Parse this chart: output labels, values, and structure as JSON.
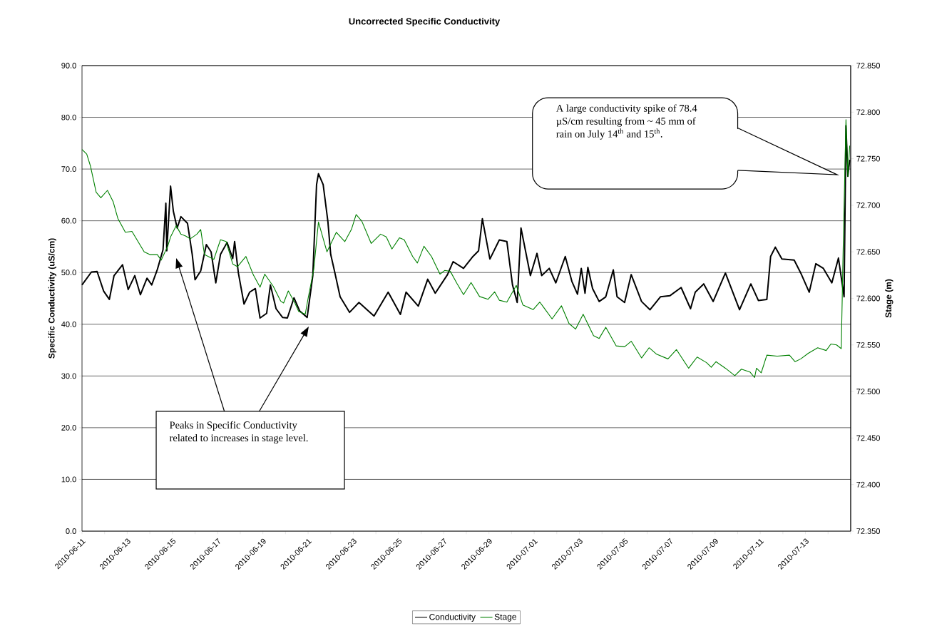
{
  "chart_data": {
    "type": "line",
    "title": "Uncorrected Specific Conductivity",
    "ylabel": "Specific Conductivity (uS/cm)",
    "y2label": "Stage (m)",
    "xlim": [
      "2010-06-11",
      "2010-07-15"
    ],
    "xticks": [
      "2010-06-11",
      {
        "value": "2010-06-12",
        "label": null
      },
      "2010-06-13",
      {
        "value": "2010-06-14",
        "label": null
      },
      "2010-06-15",
      {
        "value": "2010-06-16",
        "label": null
      },
      "2010-06-17",
      {
        "value": "2010-06-18",
        "label": null
      },
      "2010-06-19",
      {
        "value": "2010-06-20",
        "label": null
      },
      "2010-06-21",
      {
        "value": "2010-06-22",
        "label": null
      },
      "2010-06-23",
      {
        "value": "2010-06-24",
        "label": null
      },
      "2010-06-25",
      {
        "value": "2010-06-26",
        "label": null
      },
      "2010-06-27",
      {
        "value": "2010-06-28",
        "label": null
      },
      "2010-06-29",
      {
        "value": "2010-06-30",
        "label": null
      },
      "2010-07-01",
      {
        "value": "2010-07-02",
        "label": null
      },
      "2010-07-03",
      {
        "value": "2010-07-04",
        "label": null
      },
      "2010-07-05",
      {
        "value": "2010-07-06",
        "label": null
      },
      "2010-07-07",
      {
        "value": "2010-07-08",
        "label": null
      },
      "2010-07-09",
      {
        "value": "2010-07-10",
        "label": null
      },
      "2010-07-11",
      {
        "value": "2010-07-12",
        "label": null
      },
      "2010-07-13",
      {
        "value": "2010-07-14",
        "label": null
      },
      {
        "value": "2010-07-15",
        "label": null
      }
    ],
    "ylim": [
      0,
      90
    ],
    "yticks": [
      {
        "value": 0,
        "label": "0.0"
      },
      {
        "value": 10,
        "label": "10.0"
      },
      {
        "value": 20,
        "label": "20.0"
      },
      {
        "value": 30,
        "label": "30.0"
      },
      {
        "value": 40,
        "label": "40.0"
      },
      {
        "value": 50,
        "label": "50.0"
      },
      {
        "value": 60,
        "label": "60.0"
      },
      {
        "value": 70,
        "label": "70.0"
      },
      {
        "value": 80,
        "label": "80.0"
      },
      {
        "value": 90,
        "label": "90.0"
      }
    ],
    "y2lim": [
      72.35,
      72.85
    ],
    "y2ticks": [
      {
        "value": 72.35,
        "label": "72.350"
      },
      {
        "value": 72.4,
        "label": "72.400"
      },
      {
        "value": 72.45,
        "label": "72.450"
      },
      {
        "value": 72.5,
        "label": "72.500"
      },
      {
        "value": 72.55,
        "label": "72.550"
      },
      {
        "value": 72.6,
        "label": "72.600"
      },
      {
        "value": 72.65,
        "label": "72.650"
      },
      {
        "value": 72.7,
        "label": "72.700"
      },
      {
        "value": 72.75,
        "label": "72.750"
      },
      {
        "value": 72.8,
        "label": "72.800"
      },
      {
        "value": 72.85,
        "label": "72.850"
      }
    ],
    "grid": "y",
    "legend": "bottom",
    "series": [
      {
        "name": "Conductivity",
        "color": "#000000",
        "x": [
          "2010-06-11T00:00",
          "2010-06-11T10:00",
          "2010-06-11T16:00",
          "2010-06-11T23:00",
          "2010-06-12T05:00",
          "2010-06-12T10:00",
          "2010-06-12T19:00",
          "2010-06-13T01:00",
          "2010-06-13T08:00",
          "2010-06-13T14:00",
          "2010-06-13T21:00",
          "2010-06-14T02:00",
          "2010-06-14T08:00",
          "2010-06-14T14:00",
          "2010-06-14T17:00",
          "2010-06-14T18:00",
          "2010-06-14T22:00",
          "2010-06-15T01:00",
          "2010-06-15T05:00",
          "2010-06-15T09:00",
          "2010-06-15T16:00",
          "2010-06-15T21:00",
          "2010-06-16T00:00",
          "2010-06-16T06:00",
          "2010-06-16T12:00",
          "2010-06-16T17:00",
          "2010-06-16T22:00",
          "2010-06-17T03:00",
          "2010-06-17T10:00",
          "2010-06-17T16:00",
          "2010-06-17T18:00",
          "2010-06-17T22:00",
          "2010-06-18T04:00",
          "2010-06-18T10:00",
          "2010-06-18T16:00",
          "2010-06-18T21:00",
          "2010-06-19T04:00",
          "2010-06-19T08:00",
          "2010-06-19T14:00",
          "2010-06-19T21:00",
          "2010-06-20T02:00",
          "2010-06-20T09:00",
          "2010-06-20T15:00",
          "2010-06-20T23:00",
          "2010-06-21T05:00",
          "2010-06-21T09:00",
          "2010-06-21T11:00",
          "2010-06-21T16:00",
          "2010-06-21T21:00",
          "2010-06-22T00:00",
          "2010-06-22T04:00",
          "2010-06-22T10:00",
          "2010-06-22T20:00",
          "2010-06-23T06:00",
          "2010-06-23T22:00",
          "2010-06-24T13:00",
          "2010-06-25T02:00",
          "2010-06-25T08:00",
          "2010-06-25T21:00",
          "2010-06-26T07:00",
          "2010-06-26T15:00",
          "2010-06-27T04:00",
          "2010-06-27T10:00",
          "2010-06-27T21:00",
          "2010-06-28T07:00",
          "2010-06-28T13:00",
          "2010-06-28T17:00",
          "2010-06-29T01:00",
          "2010-06-29T11:00",
          "2010-06-29T19:00",
          "2010-06-30T01:00",
          "2010-06-30T06:00",
          "2010-06-30T10:00",
          "2010-06-30T20:00",
          "2010-07-01T03:00",
          "2010-07-01T08:00",
          "2010-07-01T16:00",
          "2010-07-01T23:00",
          "2010-07-02T09:00",
          "2010-07-02T16:00",
          "2010-07-02T22:00",
          "2010-07-03T02:00",
          "2010-07-03T06:00",
          "2010-07-03T09:00",
          "2010-07-03T14:00",
          "2010-07-03T21:00",
          "2010-07-04T04:00",
          "2010-07-04T12:00",
          "2010-07-04T16:00",
          "2010-07-05T00:00",
          "2010-07-05T07:00",
          "2010-07-05T18:00",
          "2010-07-06T03:00",
          "2010-07-06T14:00",
          "2010-07-07T00:00",
          "2010-07-07T12:00",
          "2010-07-07T22:00",
          "2010-07-08T03:00",
          "2010-07-08T12:00",
          "2010-07-08T22:00",
          "2010-07-09T11:00",
          "2010-07-10T02:00",
          "2010-07-10T14:00",
          "2010-07-10T22:00",
          "2010-07-11T07:00",
          "2010-07-11T11:00",
          "2010-07-11T16:00",
          "2010-07-11T23:00",
          "2010-07-12T12:00",
          "2010-07-12T19:00",
          "2010-07-13T04:00",
          "2010-07-13T11:00",
          "2010-07-13T19:00",
          "2010-07-14T04:00",
          "2010-07-14T11:00",
          "2010-07-14T17:00",
          "2010-07-14T19:00",
          "2010-07-14T21:00",
          "2010-07-14T23:00"
        ],
        "values": [
          47.6,
          50.1,
          50.2,
          46.4,
          44.8,
          49.4,
          51.5,
          46.7,
          49.4,
          45.7,
          48.9,
          47.6,
          50.6,
          54.4,
          63.4,
          54.2,
          66.7,
          61.8,
          58.6,
          60.8,
          59.5,
          53.5,
          48.6,
          50.3,
          55.4,
          54.0,
          48.0,
          53.5,
          55.8,
          52.7,
          56.0,
          49.9,
          43.9,
          46.2,
          46.9,
          41.2,
          42.1,
          47.6,
          43.0,
          41.3,
          41.2,
          45.1,
          42.6,
          41.3,
          49.4,
          67.0,
          69.1,
          67.0,
          59.9,
          53.5,
          50.3,
          45.3,
          42.3,
          44.2,
          41.6,
          46.2,
          41.9,
          46.2,
          43.5,
          48.7,
          46.0,
          49.6,
          52.1,
          50.8,
          53.1,
          54.2,
          60.4,
          52.6,
          56.3,
          56.0,
          47.6,
          44.2,
          58.6,
          49.4,
          53.7,
          49.4,
          50.8,
          48.0,
          53.1,
          48.3,
          45.8,
          50.8,
          46.0,
          51.0,
          46.9,
          44.4,
          45.3,
          50.5,
          45.3,
          44.2,
          49.6,
          44.4,
          42.8,
          45.3,
          45.5,
          47.1,
          43.0,
          46.2,
          47.8,
          44.4,
          49.9,
          42.8,
          47.8,
          44.6,
          44.8,
          53.1,
          54.9,
          52.6,
          52.4,
          49.9,
          46.2,
          51.7,
          50.8,
          48.0,
          52.8,
          45.3,
          78.4,
          68.6,
          71.8
        ]
      },
      {
        "name": "Stage",
        "color": "#008000",
        "axis": "y2",
        "x": [
          "2010-06-11T00:00",
          "2010-06-11T05:00",
          "2010-06-11T09:00",
          "2010-06-11T15:00",
          "2010-06-11T20:00",
          "2010-06-12T03:00",
          "2010-06-12T09:00",
          "2010-06-12T14:00",
          "2010-06-12T22:00",
          "2010-06-13T05:00",
          "2010-06-13T18:00",
          "2010-06-14T00:00",
          "2010-06-14T08:00",
          "2010-06-14T12:00",
          "2010-06-14T19:00",
          "2010-06-14T22:00",
          "2010-06-15T04:00",
          "2010-06-15T09:00",
          "2010-06-15T14:00",
          "2010-06-15T19:00",
          "2010-06-16T02:00",
          "2010-06-16T06:00",
          "2010-06-16T10:00",
          "2010-06-16T20:00",
          "2010-06-17T03:00",
          "2010-06-17T09:00",
          "2010-06-17T16:00",
          "2010-06-17T21:00",
          "2010-06-18T06:00",
          "2010-06-18T14:00",
          "2010-06-18T21:00",
          "2010-06-19T02:00",
          "2010-06-19T11:00",
          "2010-06-19T19:00",
          "2010-06-19T22:00",
          "2010-06-20T03:00",
          "2010-06-20T10:00",
          "2010-06-20T14:00",
          "2010-06-20T21:00",
          "2010-06-21T00:00",
          "2010-06-21T06:00",
          "2010-06-21T11:00",
          "2010-06-21T20:00",
          "2010-06-22T06:00",
          "2010-06-22T15:00",
          "2010-06-22T22:00",
          "2010-06-23T03:00",
          "2010-06-23T09:00",
          "2010-06-23T19:00",
          "2010-06-24T05:00",
          "2010-06-24T11:00",
          "2010-06-24T17:00",
          "2010-06-25T01:00",
          "2010-06-25T06:00",
          "2010-06-25T15:00",
          "2010-06-25T20:00",
          "2010-06-26T03:00",
          "2010-06-26T11:00",
          "2010-06-26T20:00",
          "2010-06-27T01:00",
          "2010-06-27T07:00",
          "2010-06-27T14:00",
          "2010-06-27T21:00",
          "2010-06-28T05:00",
          "2010-06-28T14:00",
          "2010-06-28T23:00",
          "2010-06-29T06:00",
          "2010-06-29T11:00",
          "2010-06-29T19:00",
          "2010-06-30T05:00",
          "2010-06-30T12:00",
          "2010-06-30T23:00",
          "2010-07-01T06:00",
          "2010-07-01T19:00",
          "2010-07-02T05:00",
          "2010-07-02T13:00",
          "2010-07-02T20:00",
          "2010-07-03T04:00",
          "2010-07-03T15:00",
          "2010-07-03T21:00",
          "2010-07-04T04:00",
          "2010-07-04T15:00",
          "2010-07-05T00:00",
          "2010-07-05T07:00",
          "2010-07-05T18:00",
          "2010-07-06T02:00",
          "2010-07-06T10:00",
          "2010-07-06T22:00",
          "2010-07-07T07:00",
          "2010-07-07T20:00",
          "2010-07-08T05:00",
          "2010-07-08T15:00",
          "2010-07-08T20:00",
          "2010-07-09T01:00",
          "2010-07-09T11:00",
          "2010-07-09T21:00",
          "2010-07-10T04:00",
          "2010-07-10T13:00",
          "2010-07-10T18:00",
          "2010-07-10T20:00",
          "2010-07-11T01:00",
          "2010-07-11T07:00",
          "2010-07-11T18:00",
          "2010-07-12T07:00",
          "2010-07-12T13:00",
          "2010-07-12T19:00",
          "2010-07-13T03:00",
          "2010-07-13T13:00",
          "2010-07-13T22:00",
          "2010-07-14T03:00",
          "2010-07-14T09:00",
          "2010-07-14T14:00",
          "2010-07-14T16:00",
          "2010-07-14T19:00",
          "2010-07-14T21:00",
          "2010-07-14T23:00"
        ],
        "values": [
          72.76,
          72.755,
          72.742,
          72.714,
          72.708,
          72.716,
          72.704,
          72.686,
          72.671,
          72.672,
          72.65,
          72.647,
          72.647,
          72.641,
          72.656,
          72.666,
          72.678,
          72.669,
          72.667,
          72.664,
          72.669,
          72.674,
          72.647,
          72.642,
          72.663,
          72.661,
          72.637,
          72.634,
          72.645,
          72.625,
          72.612,
          72.626,
          72.613,
          72.597,
          72.595,
          72.608,
          72.595,
          72.586,
          72.583,
          72.6,
          72.631,
          72.682,
          72.65,
          72.671,
          72.661,
          72.674,
          72.69,
          72.683,
          72.659,
          72.669,
          72.666,
          72.653,
          72.665,
          72.663,
          72.645,
          72.638,
          72.656,
          72.645,
          72.626,
          72.63,
          72.629,
          72.616,
          72.604,
          72.617,
          72.602,
          72.599,
          72.607,
          72.598,
          72.596,
          72.614,
          72.593,
          72.588,
          72.596,
          72.578,
          72.592,
          72.573,
          72.567,
          72.583,
          72.56,
          72.557,
          72.569,
          72.549,
          72.548,
          72.554,
          72.536,
          72.547,
          72.54,
          72.535,
          72.545,
          72.525,
          72.537,
          72.531,
          72.526,
          72.532,
          72.525,
          72.517,
          72.524,
          72.521,
          72.515,
          72.525,
          72.52,
          72.539,
          72.538,
          72.539,
          72.532,
          72.535,
          72.541,
          72.547,
          72.544,
          72.551,
          72.55,
          72.546,
          72.652,
          72.792,
          72.731,
          72.764
        ]
      }
    ],
    "annotations": [
      "A large conductivity spike of 78.4 µS/cm resulting from ~ 45 mm of rain on July 14$^{th}$ and 15$^{th}$.",
      "Peaks in Specific Conductivity related to increases in stage level."
    ]
  }
}
